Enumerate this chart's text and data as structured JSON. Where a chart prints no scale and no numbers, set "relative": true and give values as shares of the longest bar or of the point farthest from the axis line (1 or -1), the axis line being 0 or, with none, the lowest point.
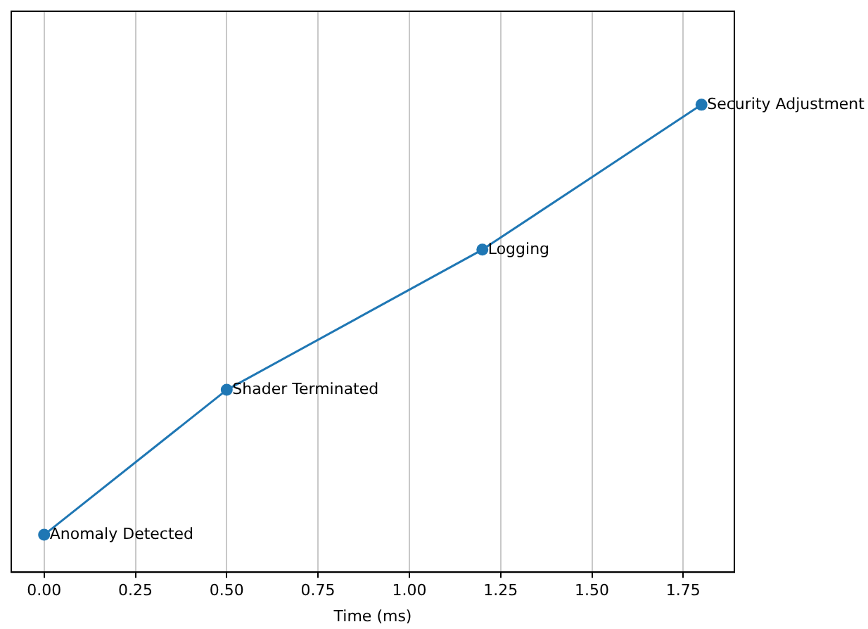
{
  "chart_data": {
    "type": "line",
    "xlabel": "Time (ms)",
    "relative": true,
    "x": [
      0,
      0.5,
      1.2,
      1.8
    ],
    "series": [
      {
        "color": "#1f77b4",
        "values": [
          0.08,
          0.39,
          0.69,
          1
        ]
      }
    ],
    "xlim": [
      -0.09,
      1.89
    ],
    "xticks": [
      {
        "value": 0,
        "label": "0.00"
      },
      {
        "value": 0.25,
        "label": "0.25"
      },
      {
        "value": 0.5,
        "label": "0.50"
      },
      {
        "value": 0.75,
        "label": "0.75"
      },
      {
        "value": 1,
        "label": "1.00"
      },
      {
        "value": 1.25,
        "label": "1.25"
      },
      {
        "value": 1.5,
        "label": "1.50"
      },
      {
        "value": 1.75,
        "label": "1.75"
      }
    ],
    "annotations": [
      {
        "text": "Anomaly Detected",
        "x": 0,
        "y": 0.08
      },
      {
        "text": "Shader Terminated",
        "x": 0.5,
        "y": 0.39
      },
      {
        "text": "Logging",
        "x": 1.2,
        "y": 0.69
      },
      {
        "text": "Security Adjustment",
        "x": 1.8,
        "y": 1
      }
    ],
    "grid": "x",
    "marker": "circle",
    "line_style": "solid",
    "legend": false
  }
}
